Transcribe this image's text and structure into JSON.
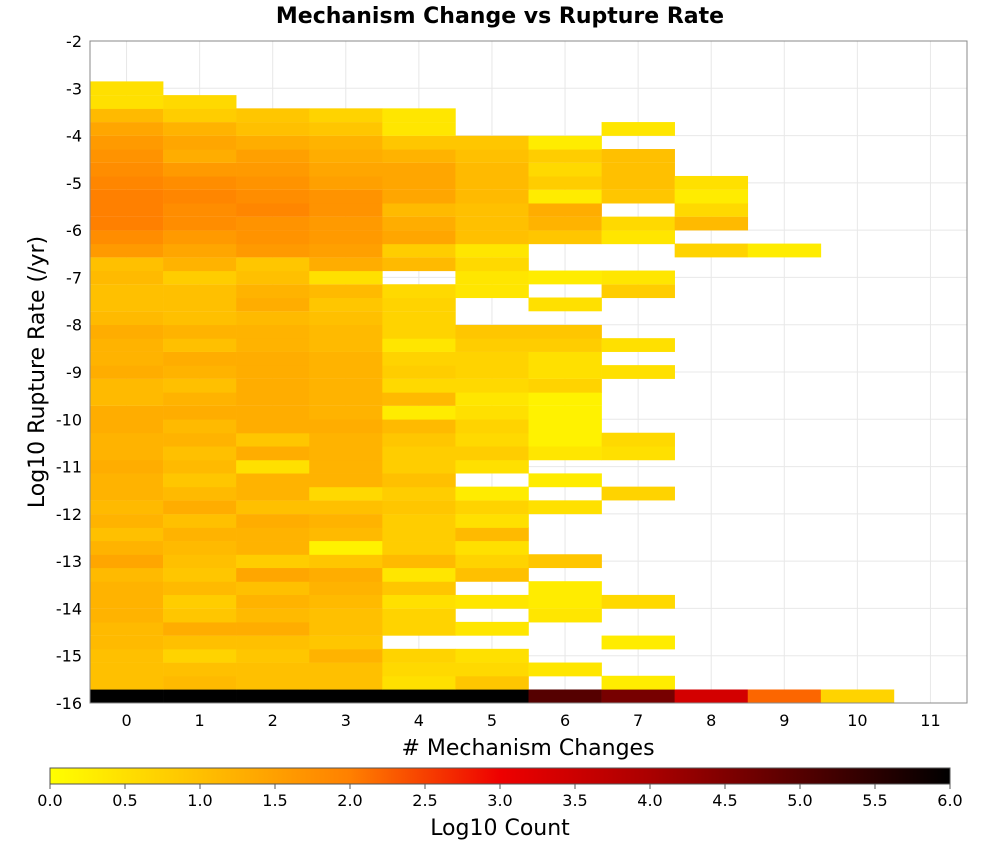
{
  "chart_data": {
    "type": "heatmap",
    "title": "Mechanism Change vs Rupture Rate",
    "xlabel": "# Mechanism Changes",
    "ylabel": "Log10 Rupture Rate (/yr)",
    "xlim": [
      -0.5,
      11.5
    ],
    "ylim": [
      -16,
      -2
    ],
    "x_ticks": [
      "0",
      "1",
      "2",
      "3",
      "4",
      "5",
      "6",
      "7",
      "8",
      "9",
      "10",
      "11"
    ],
    "y_ticks": [
      "-2",
      "-3",
      "-4",
      "-5",
      "-6",
      "-7",
      "-8",
      "-9",
      "-10",
      "-11",
      "-12",
      "-13",
      "-14",
      "-15",
      "-16"
    ],
    "bin_height": 0.2857,
    "grid": true,
    "colorbar": {
      "label": "Log10 Count",
      "min": 0.0,
      "max": 6.0,
      "ticks": [
        "0.0",
        "0.5",
        "1.0",
        "1.5",
        "2.0",
        "2.5",
        "3.0",
        "3.5",
        "4.0",
        "4.5",
        "5.0",
        "5.5",
        "6.0"
      ],
      "placement": "bottom",
      "stops": [
        "#ffff00",
        "#ffc000",
        "#ff8000",
        "#ee0000",
        "#aa0000",
        "#550000",
        "#000000"
      ]
    },
    "cells": [
      [
        0,
        -16.0,
        6.0
      ],
      [
        1,
        -16.0,
        6.0
      ],
      [
        2,
        -16.0,
        6.0
      ],
      [
        3,
        -16.0,
        6.0
      ],
      [
        4,
        -16.0,
        6.0
      ],
      [
        5,
        -16.0,
        6.0
      ],
      [
        6,
        -16.0,
        5.0
      ],
      [
        7,
        -16.0,
        4.6
      ],
      [
        8,
        -16.0,
        3.4
      ],
      [
        9,
        -16.0,
        2.2
      ],
      [
        10,
        -16.0,
        0.7
      ],
      [
        0,
        -15.71,
        1.0
      ],
      [
        1,
        -15.71,
        1.1
      ],
      [
        2,
        -15.71,
        1.0
      ],
      [
        3,
        -15.71,
        1.0
      ],
      [
        4,
        -15.71,
        0.5
      ],
      [
        5,
        -15.71,
        0.9
      ],
      [
        7,
        -15.71,
        0.3
      ],
      [
        0,
        -15.43,
        1.0
      ],
      [
        1,
        -15.43,
        1.0
      ],
      [
        2,
        -15.43,
        1.0
      ],
      [
        3,
        -15.43,
        1.0
      ],
      [
        4,
        -15.43,
        0.6
      ],
      [
        5,
        -15.43,
        0.6
      ],
      [
        6,
        -15.43,
        0.4
      ],
      [
        0,
        -15.14,
        1.0
      ],
      [
        1,
        -15.14,
        0.7
      ],
      [
        2,
        -15.14,
        0.9
      ],
      [
        3,
        -15.14,
        1.2
      ],
      [
        4,
        -15.14,
        0.7
      ],
      [
        5,
        -15.14,
        0.5
      ],
      [
        0,
        -14.86,
        1.1
      ],
      [
        1,
        -14.86,
        1.0
      ],
      [
        2,
        -14.86,
        1.0
      ],
      [
        3,
        -14.86,
        0.9
      ],
      [
        7,
        -14.86,
        0.3
      ],
      [
        0,
        -14.57,
        1.1
      ],
      [
        1,
        -14.57,
        1.3
      ],
      [
        2,
        -14.57,
        1.3
      ],
      [
        3,
        -14.57,
        1.0
      ],
      [
        4,
        -14.57,
        0.7
      ],
      [
        5,
        -14.57,
        0.4
      ],
      [
        0,
        -14.29,
        1.2
      ],
      [
        1,
        -14.29,
        0.9
      ],
      [
        2,
        -14.29,
        1.1
      ],
      [
        3,
        -14.29,
        1.0
      ],
      [
        4,
        -14.29,
        0.7
      ],
      [
        6,
        -14.29,
        0.4
      ],
      [
        0,
        -14.0,
        1.2
      ],
      [
        1,
        -14.0,
        0.8
      ],
      [
        2,
        -14.0,
        1.2
      ],
      [
        3,
        -14.0,
        1.1
      ],
      [
        4,
        -14.0,
        0.5
      ],
      [
        5,
        -14.0,
        0.4
      ],
      [
        6,
        -14.0,
        0.3
      ],
      [
        7,
        -14.0,
        0.6
      ],
      [
        0,
        -13.71,
        1.2
      ],
      [
        1,
        -13.71,
        1.1
      ],
      [
        2,
        -13.71,
        1.0
      ],
      [
        3,
        -13.71,
        1.2
      ],
      [
        4,
        -13.71,
        0.9
      ],
      [
        6,
        -13.71,
        0.3
      ],
      [
        0,
        -13.43,
        1.1
      ],
      [
        1,
        -13.43,
        0.9
      ],
      [
        2,
        -13.43,
        1.4
      ],
      [
        3,
        -13.43,
        1.3
      ],
      [
        4,
        -13.43,
        0.4
      ],
      [
        5,
        -13.43,
        1.0
      ],
      [
        0,
        -13.14,
        1.4
      ],
      [
        1,
        -13.14,
        1.0
      ],
      [
        2,
        -13.14,
        0.8
      ],
      [
        3,
        -13.14,
        0.9
      ],
      [
        4,
        -13.14,
        1.1
      ],
      [
        5,
        -13.14,
        0.7
      ],
      [
        6,
        -13.14,
        0.9
      ],
      [
        0,
        -12.86,
        1.2
      ],
      [
        1,
        -12.86,
        1.1
      ],
      [
        2,
        -12.86,
        1.2
      ],
      [
        3,
        -12.86,
        0.2
      ],
      [
        4,
        -12.86,
        0.8
      ],
      [
        5,
        -12.86,
        0.5
      ],
      [
        0,
        -12.57,
        1.0
      ],
      [
        1,
        -12.57,
        1.2
      ],
      [
        2,
        -12.57,
        1.2
      ],
      [
        3,
        -12.57,
        1.1
      ],
      [
        4,
        -12.57,
        0.8
      ],
      [
        5,
        -12.57,
        1.1
      ],
      [
        0,
        -12.29,
        1.2
      ],
      [
        1,
        -12.29,
        1.0
      ],
      [
        2,
        -12.29,
        1.3
      ],
      [
        3,
        -12.29,
        1.2
      ],
      [
        4,
        -12.29,
        0.8
      ],
      [
        5,
        -12.29,
        0.5
      ],
      [
        0,
        -12.0,
        1.1
      ],
      [
        1,
        -12.0,
        1.3
      ],
      [
        2,
        -12.0,
        1.0
      ],
      [
        3,
        -12.0,
        1.0
      ],
      [
        4,
        -12.0,
        0.9
      ],
      [
        5,
        -12.0,
        0.7
      ],
      [
        6,
        -12.0,
        0.5
      ],
      [
        0,
        -11.71,
        1.2
      ],
      [
        1,
        -11.71,
        1.1
      ],
      [
        2,
        -11.71,
        1.2
      ],
      [
        3,
        -11.71,
        0.6
      ],
      [
        4,
        -11.71,
        0.8
      ],
      [
        5,
        -11.71,
        0.3
      ],
      [
        7,
        -11.71,
        0.7
      ],
      [
        0,
        -11.43,
        1.2
      ],
      [
        1,
        -11.43,
        0.9
      ],
      [
        2,
        -11.43,
        1.2
      ],
      [
        3,
        -11.43,
        1.2
      ],
      [
        4,
        -11.43,
        1.0
      ],
      [
        6,
        -11.43,
        0.3
      ],
      [
        0,
        -11.14,
        1.3
      ],
      [
        1,
        -11.14,
        1.1
      ],
      [
        2,
        -11.14,
        0.5
      ],
      [
        3,
        -11.14,
        1.2
      ],
      [
        4,
        -11.14,
        0.8
      ],
      [
        5,
        -11.14,
        0.5
      ],
      [
        0,
        -10.86,
        1.2
      ],
      [
        1,
        -10.86,
        1.0
      ],
      [
        2,
        -10.86,
        1.3
      ],
      [
        3,
        -10.86,
        1.2
      ],
      [
        4,
        -10.86,
        0.8
      ],
      [
        5,
        -10.86,
        0.8
      ],
      [
        6,
        -10.86,
        0.4
      ],
      [
        7,
        -10.86,
        0.5
      ],
      [
        0,
        -10.57,
        1.2
      ],
      [
        1,
        -10.57,
        1.2
      ],
      [
        2,
        -10.57,
        0.9
      ],
      [
        3,
        -10.57,
        1.2
      ],
      [
        4,
        -10.57,
        0.9
      ],
      [
        5,
        -10.57,
        0.6
      ],
      [
        6,
        -10.57,
        0.2
      ],
      [
        7,
        -10.57,
        0.6
      ],
      [
        0,
        -10.29,
        1.3
      ],
      [
        1,
        -10.29,
        1.1
      ],
      [
        2,
        -10.29,
        1.3
      ],
      [
        3,
        -10.29,
        1.3
      ],
      [
        4,
        -10.29,
        1.1
      ],
      [
        5,
        -10.29,
        0.7
      ],
      [
        6,
        -10.29,
        0.2
      ],
      [
        0,
        -10.0,
        1.3
      ],
      [
        1,
        -10.0,
        1.3
      ],
      [
        2,
        -10.0,
        1.3
      ],
      [
        3,
        -10.0,
        1.2
      ],
      [
        4,
        -10.0,
        0.3
      ],
      [
        5,
        -10.0,
        0.5
      ],
      [
        6,
        -10.0,
        0.2
      ],
      [
        0,
        -9.71,
        1.1
      ],
      [
        1,
        -9.71,
        1.2
      ],
      [
        2,
        -9.71,
        1.3
      ],
      [
        3,
        -9.71,
        1.2
      ],
      [
        4,
        -9.71,
        1.1
      ],
      [
        5,
        -9.71,
        0.4
      ],
      [
        6,
        -9.71,
        0.2
      ],
      [
        0,
        -9.43,
        1.1
      ],
      [
        1,
        -9.43,
        1.0
      ],
      [
        2,
        -9.43,
        1.3
      ],
      [
        3,
        -9.43,
        1.2
      ],
      [
        4,
        -9.43,
        0.6
      ],
      [
        5,
        -9.43,
        0.6
      ],
      [
        6,
        -9.43,
        0.7
      ],
      [
        0,
        -9.14,
        1.3
      ],
      [
        1,
        -9.14,
        1.2
      ],
      [
        2,
        -9.14,
        1.3
      ],
      [
        3,
        -9.14,
        1.2
      ],
      [
        4,
        -9.14,
        0.8
      ],
      [
        5,
        -9.14,
        0.7
      ],
      [
        6,
        -9.14,
        0.5
      ],
      [
        7,
        -9.14,
        0.5
      ],
      [
        0,
        -8.86,
        1.2
      ],
      [
        1,
        -8.86,
        1.3
      ],
      [
        2,
        -8.86,
        1.3
      ],
      [
        3,
        -8.86,
        1.2
      ],
      [
        4,
        -8.86,
        0.7
      ],
      [
        5,
        -8.86,
        0.7
      ],
      [
        6,
        -8.86,
        0.5
      ],
      [
        0,
        -8.57,
        1.2
      ],
      [
        1,
        -8.57,
        1.0
      ],
      [
        2,
        -8.57,
        1.2
      ],
      [
        3,
        -8.57,
        1.1
      ],
      [
        4,
        -8.57,
        0.4
      ],
      [
        5,
        -8.57,
        0.8
      ],
      [
        6,
        -8.57,
        0.8
      ],
      [
        7,
        -8.57,
        0.5
      ],
      [
        0,
        -8.29,
        1.3
      ],
      [
        1,
        -8.29,
        1.2
      ],
      [
        2,
        -8.29,
        1.2
      ],
      [
        3,
        -8.29,
        1.1
      ],
      [
        4,
        -8.29,
        0.7
      ],
      [
        5,
        -8.29,
        0.9
      ],
      [
        6,
        -8.29,
        0.9
      ],
      [
        0,
        -8.0,
        1.1
      ],
      [
        1,
        -8.0,
        1.0
      ],
      [
        2,
        -8.0,
        1.1
      ],
      [
        3,
        -8.0,
        1.0
      ],
      [
        4,
        -8.0,
        0.7
      ],
      [
        0,
        -7.71,
        1.0
      ],
      [
        1,
        -7.71,
        1.0
      ],
      [
        2,
        -7.71,
        1.3
      ],
      [
        3,
        -7.71,
        0.9
      ],
      [
        4,
        -7.71,
        0.7
      ],
      [
        6,
        -7.71,
        0.5
      ],
      [
        0,
        -7.43,
        1.0
      ],
      [
        1,
        -7.43,
        1.0
      ],
      [
        2,
        -7.43,
        1.2
      ],
      [
        3,
        -7.43,
        1.1
      ],
      [
        4,
        -7.43,
        0.6
      ],
      [
        5,
        -7.43,
        0.4
      ],
      [
        7,
        -7.43,
        0.8
      ],
      [
        0,
        -7.14,
        1.1
      ],
      [
        1,
        -7.14,
        0.8
      ],
      [
        2,
        -7.14,
        1.0
      ],
      [
        3,
        -7.14,
        0.5
      ],
      [
        5,
        -7.14,
        0.4
      ],
      [
        6,
        -7.14,
        0.3
      ],
      [
        7,
        -7.14,
        0.4
      ],
      [
        0,
        -6.86,
        1.0
      ],
      [
        1,
        -6.86,
        1.2
      ],
      [
        2,
        -6.86,
        0.9
      ],
      [
        3,
        -6.86,
        1.3
      ],
      [
        4,
        -6.86,
        1.1
      ],
      [
        5,
        -6.86,
        0.6
      ],
      [
        0,
        -6.57,
        1.6
      ],
      [
        1,
        -6.57,
        1.4
      ],
      [
        2,
        -6.57,
        1.6
      ],
      [
        3,
        -6.57,
        1.5
      ],
      [
        4,
        -6.57,
        0.8
      ],
      [
        5,
        -6.57,
        0.4
      ],
      [
        8,
        -6.57,
        0.7
      ],
      [
        9,
        -6.57,
        0.3
      ],
      [
        0,
        -6.29,
        1.8
      ],
      [
        1,
        -6.29,
        1.6
      ],
      [
        2,
        -6.29,
        1.7
      ],
      [
        3,
        -6.29,
        1.6
      ],
      [
        4,
        -6.29,
        1.4
      ],
      [
        5,
        -6.29,
        1.0
      ],
      [
        6,
        -6.29,
        0.9
      ],
      [
        7,
        -6.29,
        0.4
      ],
      [
        0,
        -6.0,
        2.0
      ],
      [
        1,
        -6.0,
        1.8
      ],
      [
        2,
        -6.0,
        1.7
      ],
      [
        3,
        -6.0,
        1.6
      ],
      [
        4,
        -6.0,
        1.3
      ],
      [
        5,
        -6.0,
        1.0
      ],
      [
        6,
        -6.0,
        1.2
      ],
      [
        7,
        -6.0,
        0.6
      ],
      [
        8,
        -6.0,
        1.1
      ],
      [
        0,
        -5.71,
        2.0
      ],
      [
        1,
        -5.71,
        1.8
      ],
      [
        2,
        -5.71,
        1.9
      ],
      [
        3,
        -5.71,
        1.7
      ],
      [
        4,
        -5.71,
        1.1
      ],
      [
        5,
        -5.71,
        1.0
      ],
      [
        6,
        -5.71,
        1.3
      ],
      [
        8,
        -5.71,
        0.6
      ],
      [
        0,
        -5.43,
        2.0
      ],
      [
        1,
        -5.43,
        1.9
      ],
      [
        2,
        -5.43,
        1.8
      ],
      [
        3,
        -5.43,
        1.7
      ],
      [
        4,
        -5.43,
        1.4
      ],
      [
        5,
        -5.43,
        1.1
      ],
      [
        6,
        -5.43,
        0.3
      ],
      [
        7,
        -5.43,
        0.9
      ],
      [
        8,
        -5.43,
        0.3
      ],
      [
        0,
        -5.14,
        1.9
      ],
      [
        1,
        -5.14,
        1.8
      ],
      [
        2,
        -5.14,
        1.7
      ],
      [
        3,
        -5.14,
        1.5
      ],
      [
        4,
        -5.14,
        1.4
      ],
      [
        5,
        -5.14,
        1.1
      ],
      [
        6,
        -5.14,
        0.8
      ],
      [
        7,
        -5.14,
        1.0
      ],
      [
        8,
        -5.14,
        0.5
      ],
      [
        0,
        -4.86,
        1.8
      ],
      [
        1,
        -4.86,
        1.6
      ],
      [
        2,
        -4.86,
        1.6
      ],
      [
        3,
        -4.86,
        1.4
      ],
      [
        4,
        -4.86,
        1.4
      ],
      [
        5,
        -4.86,
        1.1
      ],
      [
        6,
        -4.86,
        0.6
      ],
      [
        7,
        -4.86,
        1.0
      ],
      [
        0,
        -4.57,
        1.7
      ],
      [
        1,
        -4.57,
        1.3
      ],
      [
        2,
        -4.57,
        1.5
      ],
      [
        3,
        -4.57,
        1.3
      ],
      [
        4,
        -4.57,
        1.2
      ],
      [
        5,
        -4.57,
        1.0
      ],
      [
        6,
        -4.57,
        0.8
      ],
      [
        7,
        -4.57,
        1.0
      ],
      [
        0,
        -4.29,
        1.6
      ],
      [
        1,
        -4.29,
        1.4
      ],
      [
        2,
        -4.29,
        1.3
      ],
      [
        3,
        -4.29,
        1.2
      ],
      [
        4,
        -4.29,
        0.9
      ],
      [
        5,
        -4.29,
        0.9
      ],
      [
        6,
        -4.29,
        0.3
      ],
      [
        0,
        -4.0,
        1.4
      ],
      [
        1,
        -4.0,
        1.2
      ],
      [
        2,
        -4.0,
        1.0
      ],
      [
        3,
        -4.0,
        0.9
      ],
      [
        4,
        -4.0,
        0.4
      ],
      [
        7,
        -4.0,
        0.4
      ],
      [
        0,
        -3.71,
        1.1
      ],
      [
        1,
        -3.71,
        0.8
      ],
      [
        2,
        -3.71,
        0.9
      ],
      [
        3,
        -3.71,
        0.7
      ],
      [
        4,
        -3.71,
        0.4
      ],
      [
        0,
        -3.43,
        0.5
      ],
      [
        1,
        -3.43,
        0.6
      ],
      [
        0,
        -3.14,
        0.5
      ]
    ]
  }
}
